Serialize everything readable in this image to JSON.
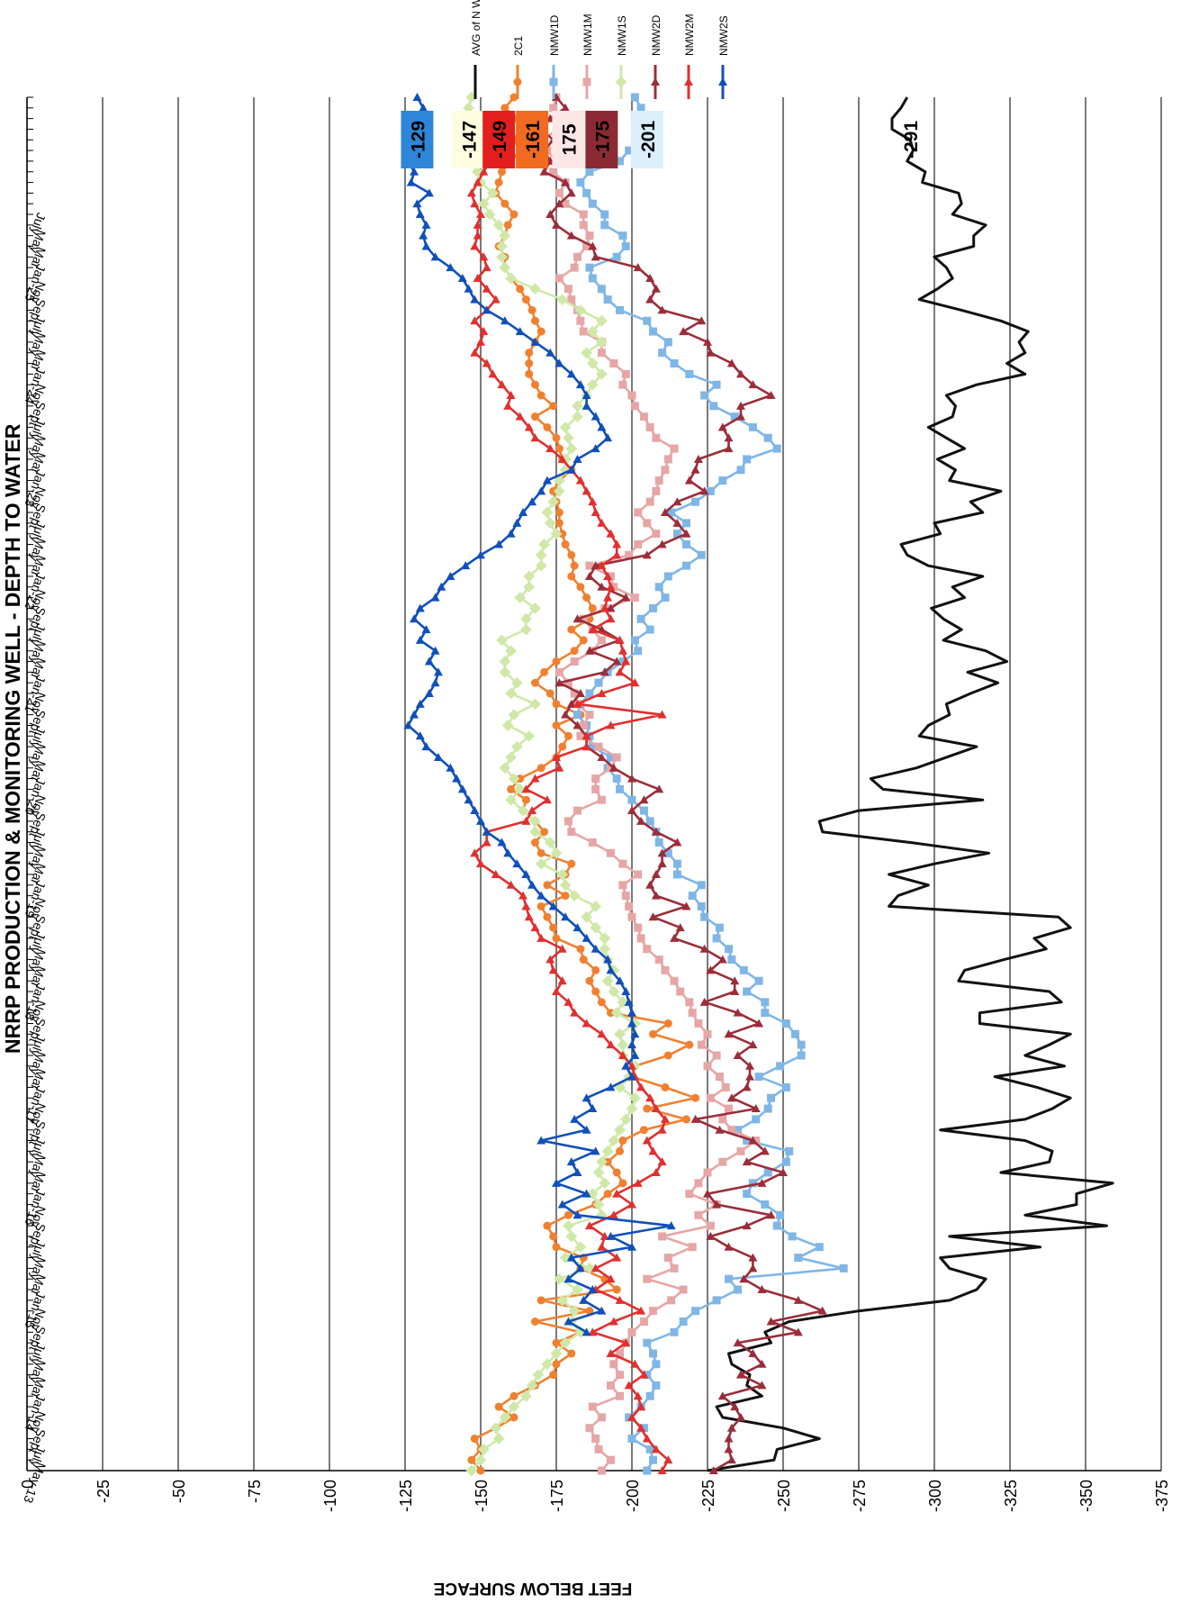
{
  "chart_data": {
    "type": "line",
    "title": "NRRP PRODUCTION  & MONITORING WELL - DEPTH TO WATER",
    "ylabel": "FEET BELOW SURFACE",
    "xlabel": "",
    "orientation": "rotated 90° clockwise",
    "ylim": [
      -375,
      0
    ],
    "y_ticks": [
      "0",
      "-25",
      "-50",
      "-75",
      "-100",
      "-125",
      "-150",
      "-175",
      "-200",
      "-225",
      "-250",
      "-275",
      "-300",
      "-325",
      "-350",
      "-375"
    ],
    "x_tick_labels": [
      "May-13",
      "July",
      "Sept",
      "Nov",
      "Jan-14",
      "Mar",
      "May",
      "July",
      "Sept",
      "Nov",
      "Jan-15",
      "Mar",
      "May",
      "July",
      "Sept",
      "Nov",
      "Jan-16",
      "Mar",
      "May",
      "July",
      "Sept",
      "Nov",
      "Jan-17",
      "Mar",
      "May",
      "July",
      "Sept",
      "Nov",
      "Jan-18",
      "Mar",
      "May",
      "July",
      "Sept",
      "Nov",
      "Jan-19",
      "Mar",
      "May",
      "July",
      "Sept",
      "Nov",
      "Jan-20",
      "Mar",
      "May",
      "July",
      "Sept",
      "Nov",
      "Jan-21",
      "Mar",
      "May",
      "July",
      "Sept",
      "Nov",
      "Jan-22",
      "Mar",
      "May",
      "July",
      "Sept",
      "Nov",
      "Jan-23",
      "Mar",
      "May",
      "July",
      "Sept",
      "Nov",
      "Jan-24",
      "Mar",
      "May",
      "July",
      "Sept",
      "Nov",
      "Jan-25",
      "Mar",
      "May",
      "July"
    ],
    "grid": true,
    "legend": "right",
    "series": [
      {
        "name": "AVG of N Wells",
        "color": "#111111",
        "marker": "none",
        "end_label": "-291",
        "values": [
          -225,
          -247,
          -248,
          -262,
          -250,
          -230,
          -228,
          -243,
          -238,
          -239,
          -233,
          -232,
          -246,
          -244,
          -252,
          -275,
          -305,
          -314,
          -317,
          -305,
          -302,
          -335,
          -305,
          -357,
          -330,
          -347,
          -347,
          -359,
          -322,
          -338,
          -339,
          -330,
          -302,
          -330,
          -339,
          -345,
          -334,
          -320,
          -343,
          -330,
          -338,
          -345,
          -315,
          -315,
          -342,
          -338,
          -308,
          -310,
          -323,
          -337,
          -333,
          -345,
          -341,
          -285,
          -288,
          -298,
          -285,
          -300,
          -318,
          -292,
          -263,
          -262,
          -275,
          -316,
          -283,
          -279,
          -294,
          -304,
          -314,
          -295,
          -298,
          -305,
          -304,
          -312,
          -321,
          -311,
          -324,
          -317,
          -303,
          -309,
          -303,
          -299,
          -310,
          -306,
          -316,
          -298,
          -291,
          -289,
          -302,
          -300,
          -316,
          -312,
          -322,
          -305,
          -307,
          -301,
          -310,
          -304,
          -298,
          -306,
          -307,
          -304,
          -314,
          -330,
          -324,
          -330,
          -328,
          -331,
          -322,
          -309,
          -295,
          -301,
          -306,
          -304,
          -300,
          -313,
          -313,
          -317,
          -306,
          -309,
          -308,
          -296,
          -297,
          -291,
          -293,
          -292,
          -286,
          -286,
          -289,
          -291
        ]
      },
      {
        "name": "2C1",
        "color": "#f08030",
        "marker": "circle",
        "end_label": "-161",
        "values": [
          -150,
          -147,
          -150,
          -148,
          -155,
          -161,
          -156,
          -161,
          -168,
          -174,
          -175,
          -180,
          -175,
          -183,
          -168,
          -186,
          -170,
          -195,
          -191,
          -183,
          -184,
          -175,
          -174,
          -172,
          -179,
          -188,
          -192,
          -197,
          -195,
          -192,
          -196,
          -197,
          -204,
          -218,
          -205,
          -221,
          -211,
          -200,
          -201,
          -212,
          -219,
          -207,
          -212,
          -193,
          -190,
          -188,
          -186,
          -188,
          -184,
          -183,
          -175,
          -174,
          -172,
          -170,
          -178,
          -172,
          -178,
          -180,
          -170,
          -168,
          -171,
          -168,
          -164,
          -165,
          -160,
          -163,
          -170,
          -175,
          -177,
          -179,
          -175,
          -183,
          -175,
          -173,
          -168,
          -171,
          -175,
          -181,
          -184,
          -180,
          -186,
          -187,
          -185,
          -183,
          -180,
          -181,
          -180,
          -178,
          -177,
          -176,
          -176,
          -175,
          -174,
          -176,
          -180,
          -177,
          -176,
          -175,
          -172,
          -168,
          -174,
          -170,
          -168,
          -166,
          -166,
          -166,
          -168,
          -170,
          -168,
          -167,
          -165,
          -163,
          -160,
          -158,
          -158,
          -156,
          -158,
          -159,
          -161,
          -158,
          -155,
          -156,
          -157,
          -160,
          -163,
          -161,
          -163,
          -162,
          -158,
          -161
        ]
      },
      {
        "name": "NMW1D",
        "color": "#7fb6e6",
        "marker": "square",
        "end_label": "-201",
        "values": [
          -205,
          -207,
          -206,
          -200,
          -204,
          -199,
          -203,
          -206,
          -208,
          -205,
          -208,
          -207,
          -205,
          -214,
          -217,
          -221,
          -228,
          -235,
          -232,
          -270,
          -255,
          -262,
          -253,
          -248,
          -249,
          -244,
          -238,
          -240,
          -245,
          -251,
          -252,
          -238,
          -235,
          -241,
          -245,
          -246,
          -251,
          -242,
          -249,
          -256,
          -256,
          -254,
          -251,
          -244,
          -244,
          -238,
          -242,
          -237,
          -233,
          -232,
          -228,
          -229,
          -224,
          -223,
          -220,
          -223,
          -215,
          -215,
          -212,
          -209,
          -208,
          -206,
          -204,
          -200,
          -196,
          -195,
          -192,
          -193,
          -187,
          -186,
          -185,
          -182,
          -183,
          -186,
          -189,
          -192,
          -197,
          -202,
          -201,
          -206,
          -203,
          -207,
          -211,
          -209,
          -212,
          -218,
          -223,
          -218,
          -215,
          -218,
          -213,
          -221,
          -226,
          -230,
          -236,
          -238,
          -248,
          -245,
          -240,
          -234,
          -227,
          -224,
          -228,
          -219,
          -214,
          -210,
          -212,
          -207,
          -205,
          -196,
          -192,
          -190,
          -187,
          -186,
          -195,
          -198,
          -197,
          -191,
          -191,
          -187,
          -185,
          -183,
          -186,
          -196,
          -199,
          -204,
          -203,
          -201,
          -203,
          -201
        ]
      },
      {
        "name": "NMW1M",
        "color": "#e6a6a6",
        "marker": "square",
        "end_label": "175",
        "values": [
          -190,
          -193,
          -189,
          -188,
          -186,
          -190,
          -187,
          -196,
          -193,
          -196,
          -194,
          -196,
          -198,
          -200,
          -204,
          -207,
          -213,
          -217,
          -205,
          -214,
          -212,
          -220,
          -210,
          -226,
          -222,
          -228,
          -219,
          -222,
          -225,
          -230,
          -236,
          -241,
          -233,
          -230,
          -232,
          -226,
          -231,
          -229,
          -225,
          -228,
          -223,
          -225,
          -222,
          -220,
          -219,
          -216,
          -214,
          -211,
          -209,
          -205,
          -203,
          -202,
          -200,
          -199,
          -198,
          -197,
          -202,
          -197,
          -193,
          -187,
          -180,
          -179,
          -182,
          -190,
          -188,
          -188,
          -193,
          -195,
          -189,
          -183,
          -184,
          -186,
          -182,
          -181,
          -179,
          -176,
          -181,
          -187,
          -190,
          -187,
          -184,
          -191,
          -201,
          -194,
          -193,
          -186,
          -199,
          -202,
          -208,
          -205,
          -202,
          -206,
          -208,
          -209,
          -211,
          -212,
          -214,
          -208,
          -206,
          -204,
          -201,
          -200,
          -197,
          -198,
          -194,
          -190,
          -190,
          -184,
          -183,
          -182,
          -180,
          -179,
          -176,
          -181,
          -182,
          -185,
          -186,
          -184,
          -184,
          -178,
          -176,
          -178,
          -174,
          -175,
          -172,
          -170,
          -176,
          -175,
          -174,
          -175
        ]
      },
      {
        "name": "NMW1S",
        "color": "#cfe8a8",
        "marker": "diamond",
        "end_label": "-147",
        "values": [
          -147,
          -150,
          -151,
          -156,
          -155,
          -158,
          -161,
          -165,
          -167,
          -169,
          -172,
          -175,
          -178,
          -183,
          -180,
          -181,
          -177,
          -182,
          -176,
          -186,
          -178,
          -183,
          -180,
          -179,
          -190,
          -189,
          -187,
          -191,
          -189,
          -190,
          -192,
          -194,
          -196,
          -198,
          -200,
          -201,
          -196,
          -199,
          -201,
          -197,
          -197,
          -196,
          -201,
          -195,
          -197,
          -194,
          -192,
          -194,
          -192,
          -191,
          -191,
          -188,
          -185,
          -188,
          -181,
          -178,
          -177,
          -170,
          -175,
          -173,
          -168,
          -168,
          -164,
          -160,
          -163,
          -161,
          -158,
          -160,
          -162,
          -166,
          -159,
          -161,
          -168,
          -160,
          -162,
          -158,
          -158,
          -160,
          -157,
          -165,
          -165,
          -168,
          -163,
          -166,
          -166,
          -170,
          -170,
          -171,
          -175,
          -173,
          -172,
          -174,
          -176,
          -176,
          -178,
          -178,
          -180,
          -179,
          -178,
          -182,
          -182,
          -185,
          -187,
          -190,
          -187,
          -185,
          -190,
          -187,
          -190,
          -183,
          -177,
          -168,
          -160,
          -158,
          -157,
          -157,
          -158,
          -156,
          -153,
          -151,
          -154,
          -150,
          -149,
          -147,
          -150,
          -147,
          -148,
          -147,
          -146,
          -147
        ]
      },
      {
        "name": "NMW2D",
        "color": "#9b2d3a",
        "marker": "triangle",
        "end_label": "-175",
        "values": [
          -227,
          -233,
          -232,
          -232,
          -233,
          -236,
          -234,
          -230,
          -243,
          -236,
          -243,
          -240,
          -235,
          -255,
          -246,
          -263,
          -255,
          -243,
          -237,
          -240,
          -240,
          -232,
          -226,
          -238,
          -246,
          -228,
          -225,
          -243,
          -250,
          -238,
          -244,
          -240,
          -229,
          -221,
          -241,
          -233,
          -238,
          -239,
          -239,
          -235,
          -240,
          -232,
          -242,
          -235,
          -224,
          -234,
          -234,
          -226,
          -230,
          -224,
          -214,
          -216,
          -207,
          -218,
          -208,
          -206,
          -208,
          -210,
          -210,
          -215,
          -208,
          -203,
          -200,
          -204,
          -209,
          -200,
          -194,
          -190,
          -185,
          -185,
          -182,
          -178,
          -180,
          -183,
          -176,
          -191,
          -195,
          -186,
          -196,
          -190,
          -182,
          -193,
          -198,
          -190,
          -186,
          -188,
          -205,
          -210,
          -218,
          -215,
          -211,
          -215,
          -224,
          -219,
          -221,
          -222,
          -232,
          -232,
          -230,
          -236,
          -236,
          -246,
          -240,
          -236,
          -233,
          -226,
          -225,
          -217,
          -223,
          -210,
          -206,
          -208,
          -206,
          -202,
          -188,
          -187,
          -180,
          -175,
          -173,
          -176,
          -180,
          -178,
          -171,
          -173,
          -171,
          -174,
          -170,
          -173,
          -178,
          -175
        ]
      },
      {
        "name": "NMW2M",
        "color": "#e03030",
        "marker": "triangle",
        "end_label": "-149",
        "values": [
          -210,
          -212,
          -208,
          -205,
          -203,
          -200,
          -203,
          -202,
          -199,
          -204,
          -201,
          -193,
          -198,
          -187,
          -194,
          -203,
          -196,
          -188,
          -193,
          -188,
          -195,
          -190,
          -191,
          -186,
          -194,
          -200,
          -195,
          -202,
          -208,
          -210,
          -207,
          -205,
          -210,
          -211,
          -208,
          -206,
          -203,
          -201,
          -200,
          -197,
          -193,
          -190,
          -185,
          -181,
          -179,
          -175,
          -177,
          -174,
          -173,
          -177,
          -170,
          -168,
          -166,
          -165,
          -164,
          -160,
          -155,
          -150,
          -148,
          -152,
          -152,
          -165,
          -167,
          -172,
          -165,
          -168,
          -176,
          -175,
          -185,
          -185,
          -193,
          -210,
          -182,
          -190,
          -201,
          -196,
          -198,
          -197,
          -196,
          -187,
          -193,
          -191,
          -192,
          -193,
          -192,
          -190,
          -195,
          -195,
          -193,
          -190,
          -188,
          -187,
          -185,
          -183,
          -180,
          -177,
          -173,
          -168,
          -166,
          -163,
          -159,
          -160,
          -157,
          -154,
          -152,
          -148,
          -150,
          -151,
          -148,
          -152,
          -155,
          -152,
          -149,
          -152,
          -151,
          -148,
          -149,
          -149,
          -150,
          -148,
          -147,
          -149,
          -151,
          -153,
          -150,
          -149,
          -151,
          -149
        ]
      },
      {
        "name": "NMW2S",
        "color": "#1050b8",
        "marker": "triangle",
        "end_label": "-129",
        "values": [
          null,
          null,
          null,
          null,
          null,
          null,
          null,
          null,
          null,
          null,
          null,
          null,
          null,
          -185,
          -179,
          -190,
          -184,
          -187,
          -179,
          -183,
          -180,
          -200,
          -193,
          -213,
          -182,
          -177,
          -185,
          -175,
          -182,
          -180,
          -188,
          -170,
          -185,
          -181,
          -187,
          -185,
          -193,
          -200,
          -198,
          -201,
          -200,
          -201,
          -200,
          -200,
          -199,
          -198,
          -196,
          -193,
          -192,
          -188,
          -185,
          -182,
          -178,
          -174,
          -170,
          -167,
          -165,
          -162,
          -159,
          -157,
          -152,
          -150,
          -148,
          -146,
          -144,
          -142,
          -140,
          -136,
          -132,
          -130,
          -126,
          -128,
          -130,
          -133,
          -135,
          -136,
          -133,
          -135,
          -130,
          -132,
          -128,
          -130,
          -135,
          -137,
          -140,
          -145,
          -150,
          -156,
          -160,
          -162,
          -164,
          -167,
          -170,
          -172,
          -180,
          -182,
          -188,
          -192,
          -190,
          -188,
          -185,
          -185,
          -183,
          -180,
          -176,
          -173,
          -168,
          -163,
          -158,
          -152,
          -148,
          -146,
          -144,
          -140,
          -135,
          -132,
          -131,
          -132,
          -130,
          -129,
          -133,
          -127,
          -128,
          -126,
          -127,
          -128,
          -130,
          -130,
          -131,
          -129
        ]
      }
    ]
  }
}
